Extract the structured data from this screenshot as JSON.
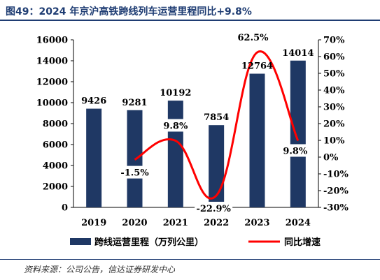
{
  "title": "图49：2024 年京沪高铁跨线列车运营里程同比+9.8%",
  "source": "资料来源：公司公告，信达证券研发中心",
  "colors": {
    "bar": "#1f3864",
    "line": "#ff0000",
    "title": "#1f3d73"
  },
  "chart_data": {
    "type": "bar",
    "categories": [
      "2019",
      "2020",
      "2021",
      "2022",
      "2023",
      "2024"
    ],
    "series": [
      {
        "name": "跨线运营里程（万列公里）",
        "type": "bar",
        "axis": "left",
        "values": [
          9426,
          9281,
          10192,
          7854,
          12764,
          14014
        ],
        "labels": [
          "9426",
          "9281",
          "10192",
          "7854",
          "12764",
          "14014"
        ]
      },
      {
        "name": "同比增速",
        "type": "line",
        "axis": "right",
        "values": [
          null,
          -1.5,
          9.8,
          -22.9,
          62.5,
          9.8
        ],
        "labels": [
          "",
          "-1.5%",
          "9.8%",
          "-22.9%",
          "62.5%",
          "9.8%"
        ]
      }
    ],
    "y_left": {
      "min": 0,
      "max": 16000,
      "step": 2000,
      "ticks": [
        "0",
        "2000",
        "4000",
        "6000",
        "8000",
        "10000",
        "12000",
        "14000",
        "16000"
      ]
    },
    "y_right": {
      "min": -30,
      "max": 70,
      "step": 10,
      "ticks": [
        "-30%",
        "-20%",
        "-10%",
        "0%",
        "10%",
        "20%",
        "30%",
        "40%",
        "50%",
        "60%",
        "70%"
      ]
    },
    "legend": {
      "position": "bottom",
      "items": [
        "跨线运营里程（万列公里）",
        "同比增速"
      ]
    },
    "grid": false
  }
}
